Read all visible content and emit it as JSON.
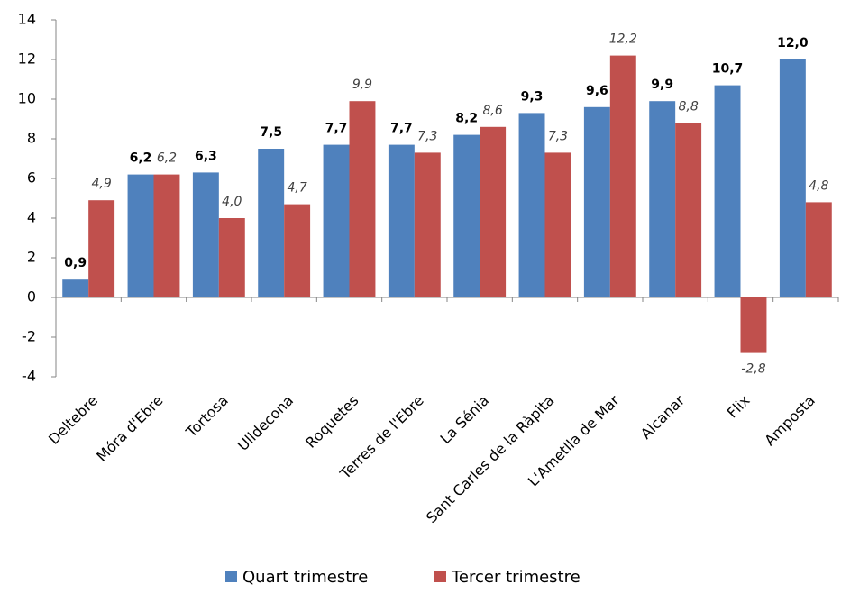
{
  "chart_data": {
    "type": "bar",
    "categories": [
      "Deltebre",
      "Móra d'Ebre",
      "Tortosa",
      "Ulldecona",
      "Roquetes",
      "Terres de l'Ebre",
      "La Sénia",
      "Sant Carles de la Ràpita",
      "L'Ametlla de Mar",
      "Alcanar",
      "Flix",
      "Amposta"
    ],
    "series": [
      {
        "name": "Quart trimestre",
        "color": "#4f81bd",
        "values": [
          0.9,
          6.2,
          6.3,
          7.5,
          7.7,
          7.7,
          8.2,
          9.3,
          9.6,
          9.9,
          10.7,
          12.0
        ],
        "value_labels": [
          "0,9",
          "6,2",
          "6,3",
          "7,5",
          "7,7",
          "7,7",
          "8,2",
          "9,3",
          "9,6",
          "9,9",
          "10,7",
          "12,0"
        ]
      },
      {
        "name": "Tercer trimestre",
        "color": "#c0504d",
        "values": [
          4.9,
          6.2,
          4.0,
          4.7,
          9.9,
          7.3,
          8.6,
          7.3,
          12.2,
          8.8,
          -2.8,
          4.8
        ],
        "value_labels": [
          "4,9",
          "6,2",
          "4,0",
          "4,7",
          "9,9",
          "7,3",
          "8,6",
          "7,3",
          "12,2",
          "8,8",
          "-2,8",
          "4,8"
        ]
      }
    ],
    "ylim": [
      -4,
      14
    ],
    "yticks": [
      -4,
      -2,
      0,
      2,
      4,
      6,
      8,
      10,
      12,
      14
    ],
    "legend": "bottom"
  }
}
